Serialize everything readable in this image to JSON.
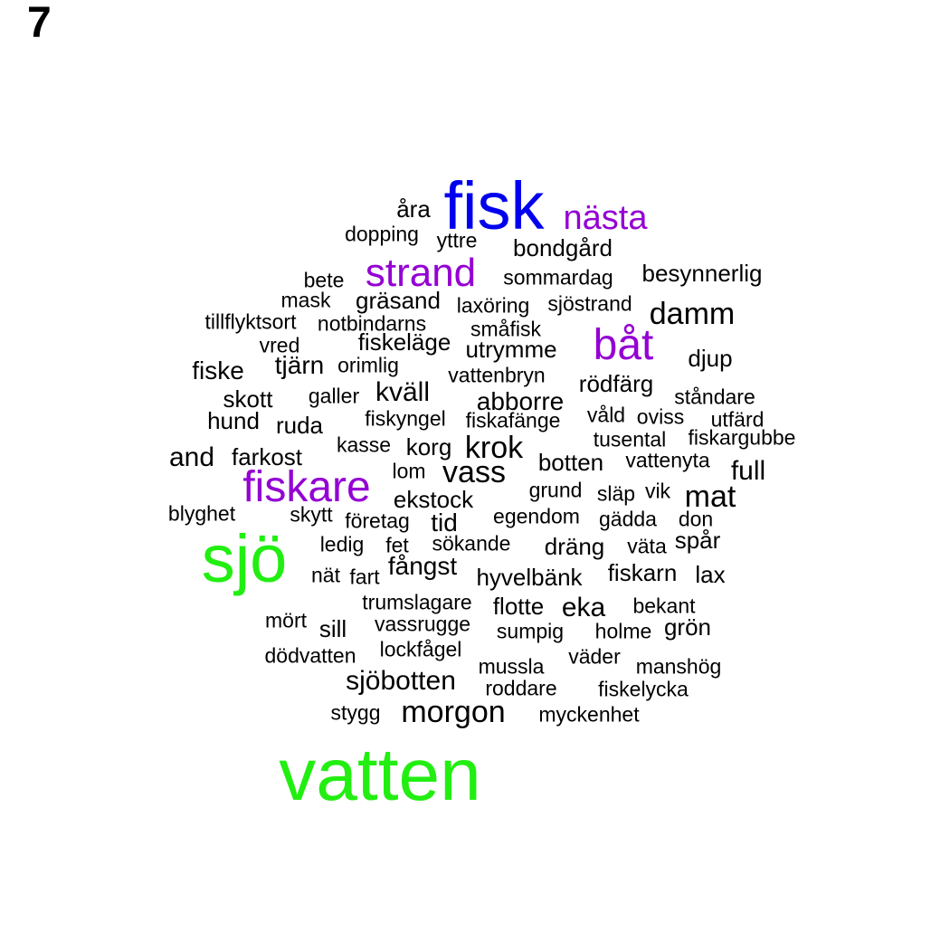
{
  "panel_label": "7",
  "colors": {
    "large": "#22ee11",
    "medium": "#0000ee",
    "accent": "#9400d3",
    "small": "#000000"
  },
  "words": [
    {
      "text": "fisk",
      "color": "#0000ee"
    },
    {
      "text": "nästa",
      "color": "#9400d3"
    },
    {
      "text": "åra",
      "color": "#000000"
    },
    {
      "text": "dopping",
      "color": "#000000"
    },
    {
      "text": "yttre",
      "color": "#000000"
    },
    {
      "text": "bondgård",
      "color": "#000000"
    },
    {
      "text": "bete",
      "color": "#000000"
    },
    {
      "text": "strand",
      "color": "#9400d3"
    },
    {
      "text": "sommardag",
      "color": "#000000"
    },
    {
      "text": "besynnerlig",
      "color": "#000000"
    },
    {
      "text": "mask",
      "color": "#000000"
    },
    {
      "text": "gräsand",
      "color": "#000000"
    },
    {
      "text": "laxöring",
      "color": "#000000"
    },
    {
      "text": "sjöstrand",
      "color": "#000000"
    },
    {
      "text": "damm",
      "color": "#000000"
    },
    {
      "text": "tillflyktsort",
      "color": "#000000"
    },
    {
      "text": "notbindarns",
      "color": "#000000"
    },
    {
      "text": "småfisk",
      "color": "#000000"
    },
    {
      "text": "båt",
      "color": "#9400d3"
    },
    {
      "text": "vred",
      "color": "#000000"
    },
    {
      "text": "fiskeläge",
      "color": "#000000"
    },
    {
      "text": "utrymme",
      "color": "#000000"
    },
    {
      "text": "djup",
      "color": "#000000"
    },
    {
      "text": "fiske",
      "color": "#000000"
    },
    {
      "text": "tjärn",
      "color": "#000000"
    },
    {
      "text": "orimlig",
      "color": "#000000"
    },
    {
      "text": "vattenbryn",
      "color": "#000000"
    },
    {
      "text": "rödfärg",
      "color": "#000000"
    },
    {
      "text": "skott",
      "color": "#000000"
    },
    {
      "text": "galler",
      "color": "#000000"
    },
    {
      "text": "kväll",
      "color": "#000000"
    },
    {
      "text": "abborre",
      "color": "#000000"
    },
    {
      "text": "ståndare",
      "color": "#000000"
    },
    {
      "text": "hund",
      "color": "#000000"
    },
    {
      "text": "ruda",
      "color": "#000000"
    },
    {
      "text": "fiskyngel",
      "color": "#000000"
    },
    {
      "text": "fiskafänge",
      "color": "#000000"
    },
    {
      "text": "våld",
      "color": "#000000"
    },
    {
      "text": "oviss",
      "color": "#000000"
    },
    {
      "text": "utfärd",
      "color": "#000000"
    },
    {
      "text": "kasse",
      "color": "#000000"
    },
    {
      "text": "korg",
      "color": "#000000"
    },
    {
      "text": "krok",
      "color": "#000000"
    },
    {
      "text": "tusental",
      "color": "#000000"
    },
    {
      "text": "fiskargubbe",
      "color": "#000000"
    },
    {
      "text": "and",
      "color": "#000000"
    },
    {
      "text": "farkost",
      "color": "#000000"
    },
    {
      "text": "botten",
      "color": "#000000"
    },
    {
      "text": "vattenyta",
      "color": "#000000"
    },
    {
      "text": "full",
      "color": "#000000"
    },
    {
      "text": "fiskare",
      "color": "#9400d3"
    },
    {
      "text": "lom",
      "color": "#000000"
    },
    {
      "text": "vass",
      "color": "#000000"
    },
    {
      "text": "grund",
      "color": "#000000"
    },
    {
      "text": "släp",
      "color": "#000000"
    },
    {
      "text": "vik",
      "color": "#000000"
    },
    {
      "text": "mat",
      "color": "#000000"
    },
    {
      "text": "ekstock",
      "color": "#000000"
    },
    {
      "text": "blyghet",
      "color": "#000000"
    },
    {
      "text": "skytt",
      "color": "#000000"
    },
    {
      "text": "företag",
      "color": "#000000"
    },
    {
      "text": "tid",
      "color": "#000000"
    },
    {
      "text": "egendom",
      "color": "#000000"
    },
    {
      "text": "gädda",
      "color": "#000000"
    },
    {
      "text": "don",
      "color": "#000000"
    },
    {
      "text": "sjö",
      "color": "#22ee11"
    },
    {
      "text": "ledig",
      "color": "#000000"
    },
    {
      "text": "fet",
      "color": "#000000"
    },
    {
      "text": "sökande",
      "color": "#000000"
    },
    {
      "text": "dräng",
      "color": "#000000"
    },
    {
      "text": "väta",
      "color": "#000000"
    },
    {
      "text": "spår",
      "color": "#000000"
    },
    {
      "text": "nät",
      "color": "#000000"
    },
    {
      "text": "fart",
      "color": "#000000"
    },
    {
      "text": "fångst",
      "color": "#000000"
    },
    {
      "text": "hyvelbänk",
      "color": "#000000"
    },
    {
      "text": "fiskarn",
      "color": "#000000"
    },
    {
      "text": "lax",
      "color": "#000000"
    },
    {
      "text": "trumslagare",
      "color": "#000000"
    },
    {
      "text": "flotte",
      "color": "#000000"
    },
    {
      "text": "eka",
      "color": "#000000"
    },
    {
      "text": "bekant",
      "color": "#000000"
    },
    {
      "text": "mört",
      "color": "#000000"
    },
    {
      "text": "sill",
      "color": "#000000"
    },
    {
      "text": "vassrugge",
      "color": "#000000"
    },
    {
      "text": "sumpig",
      "color": "#000000"
    },
    {
      "text": "holme",
      "color": "#000000"
    },
    {
      "text": "grön",
      "color": "#000000"
    },
    {
      "text": "dödvatten",
      "color": "#000000"
    },
    {
      "text": "lockfågel",
      "color": "#000000"
    },
    {
      "text": "mussla",
      "color": "#000000"
    },
    {
      "text": "väder",
      "color": "#000000"
    },
    {
      "text": "manshög",
      "color": "#000000"
    },
    {
      "text": "sjöbotten",
      "color": "#000000"
    },
    {
      "text": "roddare",
      "color": "#000000"
    },
    {
      "text": "fiskelycka",
      "color": "#000000"
    },
    {
      "text": "stygg",
      "color": "#000000"
    },
    {
      "text": "morgon",
      "color": "#000000"
    },
    {
      "text": "myckenhet",
      "color": "#000000"
    },
    {
      "text": "vatten",
      "color": "#22ee11"
    }
  ]
}
